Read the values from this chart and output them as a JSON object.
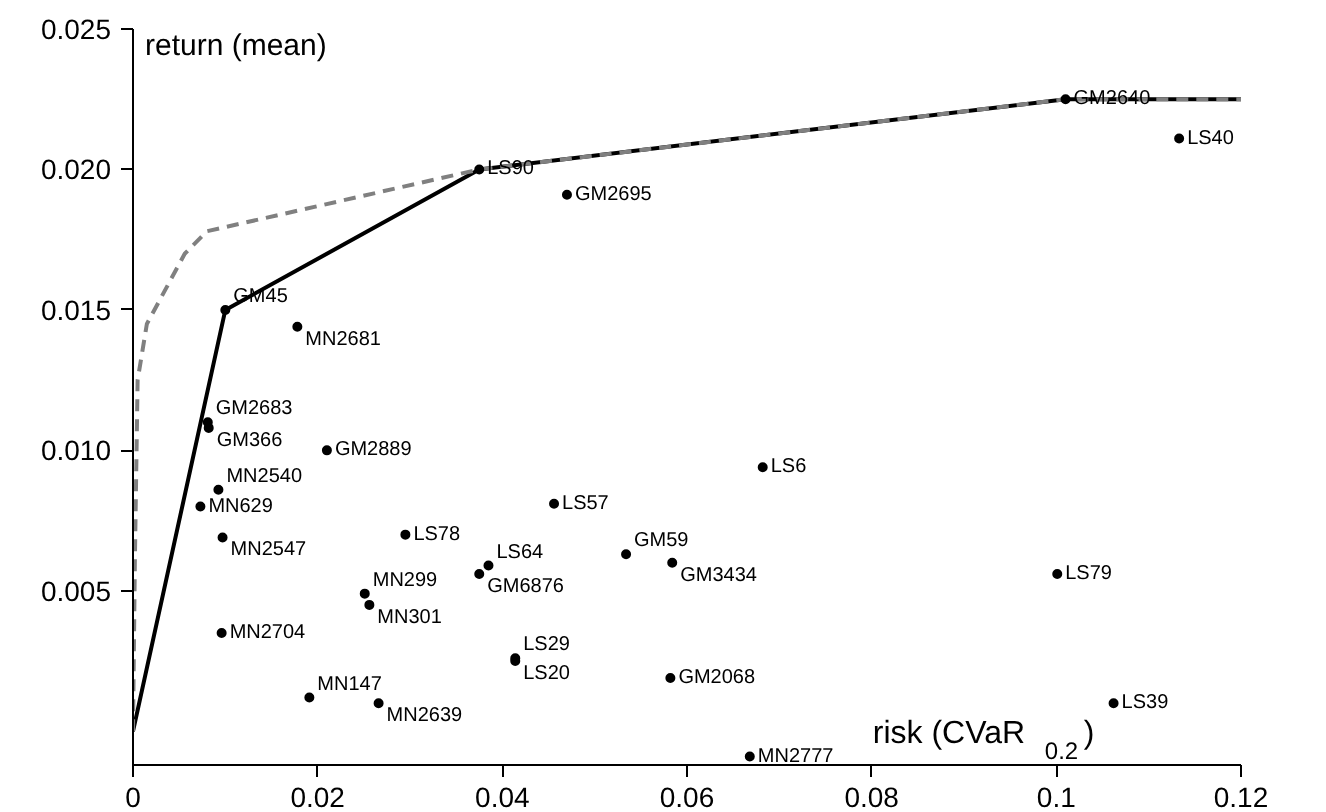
{
  "chart_data": {
    "type": "scatter",
    "xlabel": "risk (CVaR$_{0.2}$)",
    "ylabel": "return (mean)",
    "xlim": [
      0,
      0.12
    ],
    "ylim": [
      -0.0012,
      0.025
    ],
    "xticks": [
      0,
      0.02,
      0.04,
      0.06,
      0.08,
      {
        "value": 0.1,
        "label": "0.1"
      },
      0.12
    ],
    "yticks": [
      0.005,
      {
        "value": 0.01,
        "label": "0.010"
      },
      0.015,
      {
        "value": 0.02,
        "label": "0.020"
      },
      0.025
    ],
    "grid": false,
    "marker": "circle",
    "series": [
      {
        "color": "#000000",
        "x": [
          0.101,
          0.1133,
          0.047,
          0.0375,
          0.01,
          0.0178,
          0.0081,
          0.0082,
          0.021,
          0.00925,
          0.0073,
          0.0097,
          0.0295,
          0.0456,
          0.0385,
          0.0375,
          0.0251,
          0.0256,
          0.0096,
          0.0414,
          0.0414,
          0.0191,
          0.0266,
          0.0682,
          0.0534,
          0.0584,
          0.1001,
          0.0582,
          0.1062,
          0.0668
        ],
        "values": [
          0.0225,
          0.0211,
          0.0191,
          0.02,
          0.015,
          0.0144,
          0.011,
          0.0108,
          0.01,
          0.0086,
          0.008,
          0.0069,
          0.007,
          0.0081,
          0.0059,
          0.0056,
          0.0049,
          0.0045,
          0.0035,
          0.0026,
          0.0025,
          0.0012,
          0.001,
          0.0094,
          0.0063,
          0.006,
          0.0056,
          0.0019,
          0.001,
          -0.0009
        ]
      },
      {
        "type": "line",
        "color": "#000000",
        "line_style": "solid",
        "marker": "none",
        "x": [
          0,
          0.01,
          0.0375,
          0.101,
          0.12
        ],
        "values": [
          0,
          0.015,
          0.02,
          0.0225,
          0.0225
        ]
      },
      {
        "type": "line",
        "color": "#808080",
        "line_style": "dashed",
        "marker": "none",
        "x": [
          0,
          0.0002,
          0.0005,
          0.0015,
          0.0056,
          0.008,
          0.0375,
          0.101,
          0.12
        ],
        "values": [
          0,
          0.006,
          0.0125,
          0.0145,
          0.017,
          0.0178,
          0.02,
          0.0225,
          0.0225
        ]
      }
    ],
    "annotations": [
      {
        "text": "GM2640",
        "x": 0.101,
        "y": 0.0225
      },
      {
        "text": "LS40",
        "x": 0.1133,
        "y": 0.0211
      },
      {
        "text": "GM2695",
        "x": 0.047,
        "y": 0.0191
      },
      {
        "text": "LS90",
        "x": 0.0375,
        "y": 0.02
      },
      {
        "text": "GM45",
        "x": 0.01,
        "y": 0.015
      },
      {
        "text": "MN2681",
        "x": 0.0178,
        "y": 0.0144
      },
      {
        "text": "GM2683",
        "x": 0.0081,
        "y": 0.011
      },
      {
        "text": "GM366",
        "x": 0.0082,
        "y": 0.0108
      },
      {
        "text": "GM2889",
        "x": 0.021,
        "y": 0.01
      },
      {
        "text": "MN2540",
        "x": 0.00925,
        "y": 0.0086
      },
      {
        "text": "MN629",
        "x": 0.0073,
        "y": 0.008
      },
      {
        "text": "MN2547",
        "x": 0.0097,
        "y": 0.0069
      },
      {
        "text": "LS78",
        "x": 0.0295,
        "y": 0.007
      },
      {
        "text": "LS57",
        "x": 0.0456,
        "y": 0.0081
      },
      {
        "text": "LS64",
        "x": 0.0385,
        "y": 0.0059
      },
      {
        "text": "GM6876",
        "x": 0.0375,
        "y": 0.0056
      },
      {
        "text": "MN299",
        "x": 0.0251,
        "y": 0.0049
      },
      {
        "text": "MN301",
        "x": 0.0256,
        "y": 0.0045
      },
      {
        "text": "MN2704",
        "x": 0.0096,
        "y": 0.0035
      },
      {
        "text": "LS29",
        "x": 0.0414,
        "y": 0.0026
      },
      {
        "text": "LS20",
        "x": 0.0414,
        "y": 0.0025
      },
      {
        "text": "MN147",
        "x": 0.0191,
        "y": 0.0012
      },
      {
        "text": "MN2639",
        "x": 0.0266,
        "y": 0.001
      },
      {
        "text": "LS6",
        "x": 0.0682,
        "y": 0.0094
      },
      {
        "text": "GM59",
        "x": 0.0534,
        "y": 0.0063
      },
      {
        "text": "GM3434",
        "x": 0.0584,
        "y": 0.006
      },
      {
        "text": "LS79",
        "x": 0.1001,
        "y": 0.0056
      },
      {
        "text": "GM2068",
        "x": 0.0582,
        "y": 0.0019
      },
      {
        "text": "LS39",
        "x": 0.1062,
        "y": 0.001
      },
      {
        "text": "MN2777",
        "x": 0.0668,
        "y": -0.0009
      }
    ]
  }
}
